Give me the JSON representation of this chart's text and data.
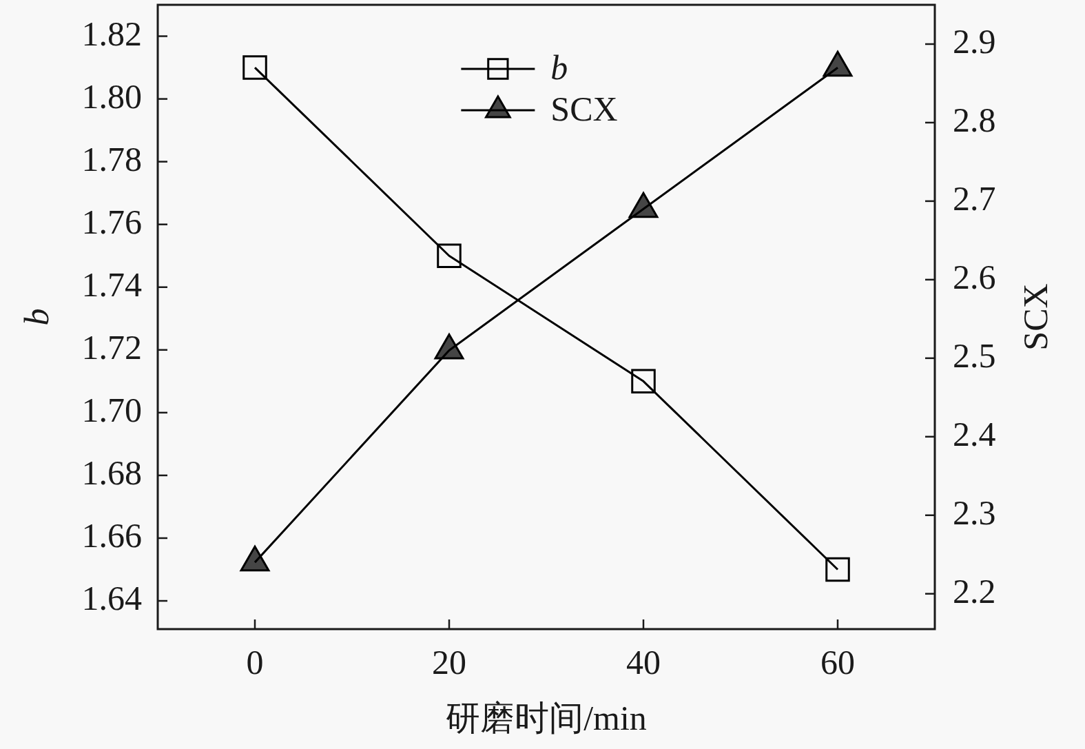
{
  "chart_data": {
    "type": "line",
    "xlabel": "研磨时间/min",
    "ylabel": "b",
    "y2label": "SCX",
    "x": [
      0,
      20,
      40,
      60
    ],
    "series": [
      {
        "name": "b",
        "color": "#000000",
        "marker": "square",
        "values": [
          1.81,
          1.75,
          1.71,
          1.65
        ]
      },
      {
        "name": "SCX",
        "color": "#000000",
        "marker": "triangle",
        "axis": "y2",
        "values": [
          2.24,
          2.51,
          2.69,
          2.87
        ]
      }
    ],
    "xlim": [
      -10,
      70
    ],
    "xticks": [
      0,
      20,
      40,
      60
    ],
    "ylim": [
      1.631,
      1.83
    ],
    "yticks": [
      1.64,
      1.66,
      1.68,
      {
        "value": 1.7,
        "label": "1.70"
      },
      1.72,
      1.74,
      1.76,
      1.78,
      {
        "value": 1.8,
        "label": "1.80"
      },
      1.82
    ],
    "y2lim": [
      2.155,
      2.95
    ],
    "y2ticks": [
      2.2,
      2.3,
      2.4,
      2.5,
      2.6,
      2.7,
      2.8,
      2.9
    ],
    "grid": false,
    "legend": "top",
    "line_style": "solid"
  }
}
